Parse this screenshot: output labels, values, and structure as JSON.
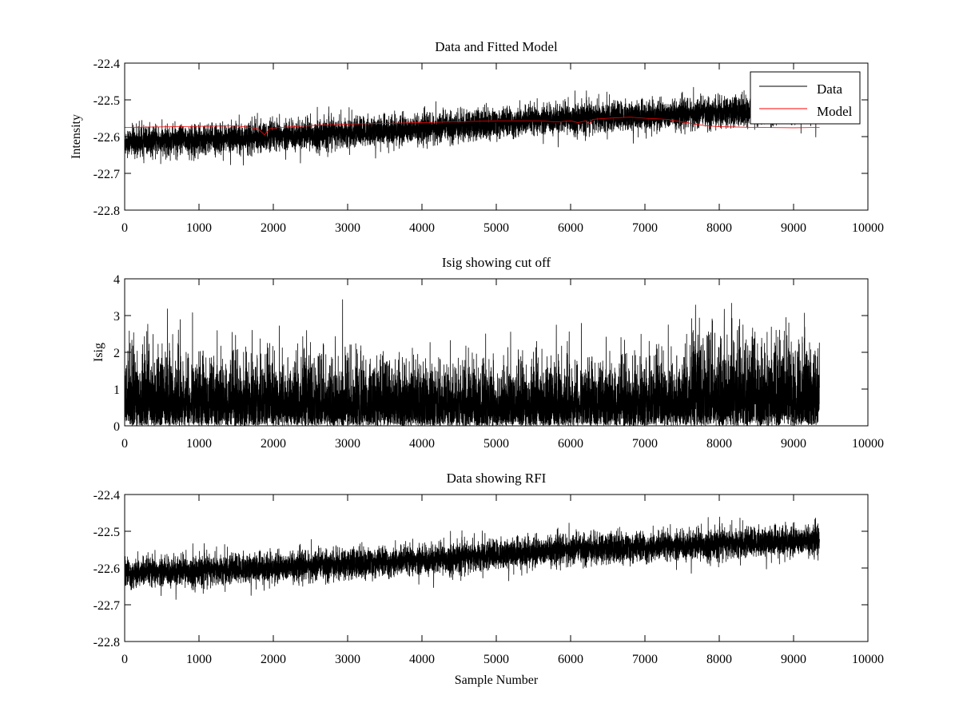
{
  "figure": {
    "background": "#ffffff",
    "xlabel": "Sample Number"
  },
  "chart_data": [
    {
      "type": "line",
      "title": "Data and Fitted Model",
      "xlabel": "",
      "ylabel": "Intensity",
      "xlim": [
        0,
        10000
      ],
      "ylim": [
        -22.8,
        -22.4
      ],
      "xticks": [
        0,
        1000,
        2000,
        3000,
        4000,
        5000,
        6000,
        7000,
        8000,
        9000,
        10000
      ],
      "yticks": [
        -22.8,
        -22.7,
        -22.6,
        -22.5,
        -22.4
      ],
      "xtick_labels": [
        "0",
        "1000",
        "2000",
        "3000",
        "4000",
        "5000",
        "6000",
        "7000",
        "8000",
        "9000",
        "10000"
      ],
      "ytick_labels": [
        "-22.8",
        "-22.7",
        "-22.6",
        "-22.5",
        "-22.4"
      ],
      "grid": false,
      "legend": {
        "position": "top-right",
        "entries": [
          "Data",
          "Model"
        ]
      },
      "series": [
        {
          "name": "Data",
          "color": "#000000",
          "kind": "noise",
          "n_samples": 9350,
          "trend": {
            "x": [
              0,
              2000,
              4000,
              5000,
              6000,
              7000,
              8000,
              9350
            ],
            "y": [
              -22.615,
              -22.6,
              -22.58,
              -22.565,
              -22.55,
              -22.545,
              -22.535,
              -22.525
            ]
          },
          "spread": 0.035
        },
        {
          "name": "Model",
          "color": "#ff0000",
          "kind": "line",
          "x": [
            0,
            1000,
            1500,
            1700,
            1800,
            1880,
            1950,
            2100,
            2500,
            3000,
            4000,
            5000,
            5600,
            5800,
            6000,
            6100,
            6200,
            6250,
            6300,
            6500,
            6800,
            7000,
            7300,
            7500,
            7800,
            8000,
            8500,
            9000,
            9350
          ],
          "y": [
            -22.575,
            -22.572,
            -22.571,
            -22.575,
            -22.58,
            -22.595,
            -22.578,
            -22.575,
            -22.57,
            -22.566,
            -22.562,
            -22.557,
            -22.557,
            -22.56,
            -22.557,
            -22.562,
            -22.557,
            -22.565,
            -22.553,
            -22.55,
            -22.547,
            -22.55,
            -22.553,
            -22.56,
            -22.57,
            -22.573,
            -22.575,
            -22.576,
            -22.575
          ]
        }
      ]
    },
    {
      "type": "line",
      "title": "Isig showing cut off",
      "xlabel": "",
      "ylabel": "Isig",
      "xlim": [
        0,
        10000
      ],
      "ylim": [
        0,
        4
      ],
      "xticks": [
        0,
        1000,
        2000,
        3000,
        4000,
        5000,
        6000,
        7000,
        8000,
        9000,
        10000
      ],
      "yticks": [
        0,
        1,
        2,
        3,
        4
      ],
      "xtick_labels": [
        "0",
        "1000",
        "2000",
        "3000",
        "4000",
        "5000",
        "6000",
        "7000",
        "8000",
        "9000",
        "10000"
      ],
      "ytick_labels": [
        "0",
        "1",
        "2",
        "3",
        "4"
      ],
      "grid": false,
      "series": [
        {
          "name": "Isig",
          "color": "#000000",
          "kind": "abs-noise",
          "n_samples": 9350,
          "scale": {
            "x": [
              0,
              1000,
              3000,
              5000,
              7000,
              7500,
              7700,
              9350
            ],
            "y": [
              0.95,
              0.85,
              0.8,
              0.75,
              0.8,
              0.85,
              1.05,
              1.05
            ]
          },
          "max": 3.45
        }
      ]
    },
    {
      "type": "line",
      "title": "Data showing RFI",
      "xlabel": "Sample Number",
      "ylabel": "",
      "xlim": [
        0,
        10000
      ],
      "ylim": [
        -22.8,
        -22.4
      ],
      "xticks": [
        0,
        1000,
        2000,
        3000,
        4000,
        5000,
        6000,
        7000,
        8000,
        9000,
        10000
      ],
      "yticks": [
        -22.8,
        -22.7,
        -22.6,
        -22.5,
        -22.4
      ],
      "xtick_labels": [
        "0",
        "1000",
        "2000",
        "3000",
        "4000",
        "5000",
        "6000",
        "7000",
        "8000",
        "9000",
        "10000"
      ],
      "ytick_labels": [
        "-22.8",
        "-22.7",
        "-22.6",
        "-22.5",
        "-22.4"
      ],
      "grid": false,
      "series": [
        {
          "name": "Data",
          "color": "#000000",
          "kind": "noise",
          "n_samples": 9350,
          "trend": {
            "x": [
              0,
              2000,
              4000,
              5000,
              6000,
              7000,
              8000,
              9350
            ],
            "y": [
              -22.615,
              -22.6,
              -22.58,
              -22.565,
              -22.55,
              -22.545,
              -22.535,
              -22.525
            ]
          },
          "spread": 0.035
        }
      ]
    }
  ]
}
